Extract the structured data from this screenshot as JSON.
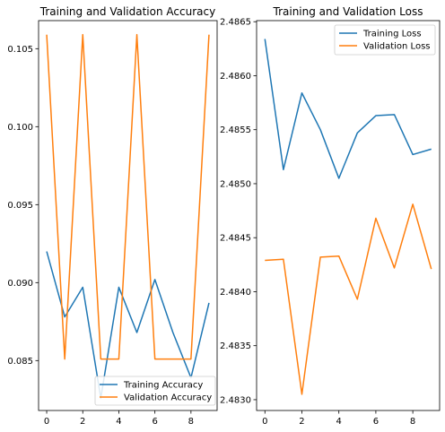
{
  "colors": {
    "training": "#1f77b4",
    "validation": "#ff7f0e",
    "legend_border": "#cccccc"
  },
  "chart_data": [
    {
      "type": "line",
      "title": "Training and Validation Accuracy",
      "xlabel": "",
      "ylabel": "",
      "xlim": [
        -0.45,
        9.45
      ],
      "ylim": [
        0.0818,
        0.1068
      ],
      "xticks": [
        0,
        2,
        4,
        6,
        8
      ],
      "xtick_labels": [
        "0",
        "2",
        "4",
        "6",
        "8"
      ],
      "yticks": [
        0.085,
        0.09,
        0.095,
        0.1,
        0.105
      ],
      "ytick_labels": [
        "0.085",
        "0.090",
        "0.095",
        "0.100",
        "0.105"
      ],
      "grid": false,
      "legend_position": "lower-right",
      "x": [
        0,
        1,
        2,
        3,
        4,
        5,
        6,
        7,
        8,
        9
      ],
      "series": [
        {
          "name": "Training Accuracy",
          "color": "#1f77b4",
          "values": [
            0.092,
            0.0878,
            0.0897,
            0.0826,
            0.0897,
            0.0868,
            0.0902,
            0.0868,
            0.0839,
            0.0887
          ]
        },
        {
          "name": "Validation Accuracy",
          "color": "#ff7f0e",
          "values": [
            0.1059,
            0.0851,
            0.1059,
            0.0851,
            0.0851,
            0.1059,
            0.0851,
            0.0851,
            0.0851,
            0.1059
          ]
        }
      ]
    },
    {
      "type": "line",
      "title": "Training and Validation Loss",
      "xlabel": "",
      "ylabel": "",
      "xlim": [
        -0.45,
        9.45
      ],
      "ylim": [
        2.4829,
        2.48651
      ],
      "xticks": [
        0,
        2,
        4,
        6,
        8
      ],
      "xtick_labels": [
        "0",
        "2",
        "4",
        "6",
        "8"
      ],
      "yticks": [
        2.483,
        2.4835,
        2.484,
        2.4845,
        2.485,
        2.4855,
        2.486,
        2.4865
      ],
      "ytick_labels": [
        "2.4830",
        "2.4835",
        "2.4840",
        "2.4845",
        "2.4850",
        "2.4855",
        "2.4860",
        "2.4865"
      ],
      "grid": false,
      "legend_position": "upper-right",
      "x": [
        0,
        1,
        2,
        3,
        4,
        5,
        6,
        7,
        8,
        9
      ],
      "series": [
        {
          "name": "Training Loss",
          "color": "#1f77b4",
          "values": [
            2.48634,
            2.48513,
            2.48584,
            2.4855,
            2.48505,
            2.48547,
            2.48563,
            2.48564,
            2.48527,
            2.48532
          ]
        },
        {
          "name": "Validation Loss",
          "color": "#ff7f0e",
          "values": [
            2.48429,
            2.4843,
            2.48305,
            2.48432,
            2.48433,
            2.48393,
            2.48468,
            2.48422,
            2.48481,
            2.48421
          ]
        }
      ]
    }
  ]
}
